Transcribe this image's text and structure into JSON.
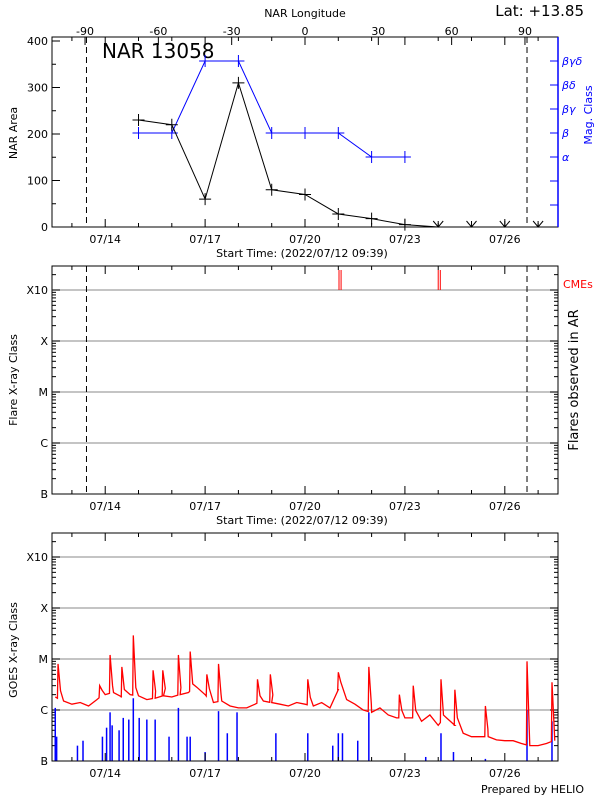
{
  "colors": {
    "area": "#000000",
    "mag": "#0000ff",
    "cme": "#ff0000",
    "goes_long": "#ff0000",
    "goes_short": "#0000ff",
    "grid": "#a0a0a0"
  },
  "start_time_label": "Start Time: (2022/07/12 09:39)",
  "footer": "Prepared by HELIO",
  "chart_data": [
    {
      "type": "line",
      "title": "NAR 13058",
      "lat_label": "Lat: +13.85",
      "xlabel": "Start Time: (2022/07/12 09:39)",
      "x_range": [
        "07/12 09:39",
        "07/27 14:30"
      ],
      "x_ticks": [
        "07/14",
        "07/17",
        "07/20",
        "07/23",
        "07/26"
      ],
      "top_axis": {
        "label": "NAR Longitude",
        "ticks": [
          "-90",
          "-60",
          "-30",
          "0",
          "30",
          "60",
          "90"
        ]
      },
      "ylabel": "NAR Area",
      "ylim": [
        0,
        400
      ],
      "y_ticks": [
        "0",
        "100",
        "200",
        "300",
        "400"
      ],
      "limb_markers": [
        "07/13 10:30",
        "07/26 16:00"
      ],
      "y2label": "Mag. Class",
      "y2_ticks": [
        "βγδ",
        "βδ",
        "βγ",
        "β",
        "α"
      ],
      "series": [
        {
          "key": "area",
          "points": [
            [
              "07/15 00:00",
              230
            ],
            [
              "07/16 00:00",
              220
            ],
            [
              "07/17 00:00",
              60
            ],
            [
              "07/18 00:00",
              310
            ],
            [
              "07/19 00:00",
              80
            ],
            [
              "07/20 00:00",
              70
            ],
            [
              "07/21 00:00",
              28
            ],
            [
              "07/22 00:00",
              18
            ],
            [
              "07/23 00:00",
              5
            ],
            [
              "07/24 00:00",
              0
            ],
            [
              "07/25 00:00",
              0
            ],
            [
              "07/26 00:00",
              0
            ],
            [
              "07/27 00:00",
              0
            ]
          ]
        },
        {
          "key": "mag_class",
          "points": [
            [
              "07/15 00:00",
              "β"
            ],
            [
              "07/16 00:00",
              "β"
            ],
            [
              "07/17 00:00",
              "βγδ"
            ],
            [
              "07/18 00:00",
              "βγδ"
            ],
            [
              "07/19 00:00",
              "β"
            ],
            [
              "07/20 00:00",
              "β"
            ],
            [
              "07/21 00:00",
              "β"
            ],
            [
              "07/22 00:00",
              "α"
            ],
            [
              "07/23 00:00",
              "α"
            ]
          ]
        }
      ]
    },
    {
      "type": "scatter",
      "ylabel": "Flare X-ray Class",
      "y2label": "Flares observed in AR",
      "xlabel": "Start Time: (2022/07/12 09:39)",
      "x_ticks": [
        "07/14",
        "07/17",
        "07/20",
        "07/23",
        "07/26"
      ],
      "y_ticks": [
        "B",
        "C",
        "M",
        "X",
        "X10"
      ],
      "grid": true,
      "limb_markers": [
        "07/13 10:30",
        "07/26 16:00"
      ],
      "cme_label": "CMEs",
      "cmes": [
        "07/21 00:30",
        "07/21 02:00",
        "07/24 00:00",
        "07/24 01:30"
      ],
      "flares": []
    },
    {
      "type": "line",
      "ylabel": "GOES X-ray Class",
      "x_ticks": [
        "07/14",
        "07/17",
        "07/20",
        "07/23",
        "07/26"
      ],
      "y_ticks": [
        "B",
        "C",
        "M",
        "X",
        "X10"
      ],
      "yscale": "log",
      "grid": true,
      "long_channel": {
        "start": "07/12 12:00",
        "step_hours": 6,
        "baseline": [
          1.8e-06,
          1.5e-06,
          1.3e-06,
          1.4e-06,
          1.2e-06,
          1.6e-06,
          2e-06,
          2.2e-06,
          1.8e-06,
          2e-06,
          1.9e-06,
          1.6e-06,
          1.7e-06,
          1.9e-06,
          1.8e-06,
          2e-06,
          2.2e-06,
          2.8e-06,
          2e-06,
          1.4e-06,
          1.5e-06,
          1.2e-06,
          1.1e-06,
          1.1e-06,
          1.3e-06,
          1.5e-06,
          1.4e-06,
          1.3e-06,
          1.2e-06,
          1.4e-06,
          1.3e-06,
          1.2e-06,
          1.4e-06,
          1.1e-06,
          2.5e-06,
          1.6e-06,
          1.3e-06,
          1e-06,
          9e-07,
          1.1e-06,
          8e-07,
          7e-07,
          7e-07,
          7e-07,
          6e-07,
          8e-07,
          5e-07,
          7e-07,
          5e-07,
          3.5e-07,
          3e-07,
          3e-07,
          3e-07,
          2.6e-07,
          2.5e-07,
          2.5e-07,
          2.2e-07,
          2e-07,
          2e-07,
          2.2e-07,
          2.5e-07
        ],
        "peaks": [
          [
            "07/12 14:00",
            8e-06
          ],
          [
            "07/13 20:00",
            3e-06
          ],
          [
            "07/14 03:30",
            1.2e-05
          ],
          [
            "07/14 12:00",
            7e-06
          ],
          [
            "07/14 20:15",
            2.9e-05
          ],
          [
            "07/15 10:30",
            6e-06
          ],
          [
            "07/15 17:30",
            6e-06
          ],
          [
            "07/16 04:45",
            1.2e-05
          ],
          [
            "07/16 13:15",
            1.4e-05
          ],
          [
            "07/17 01:15",
            5e-06
          ],
          [
            "07/17 09:40",
            8e-06
          ],
          [
            "07/18 13:45",
            4e-06
          ],
          [
            "07/18 23:00",
            5e-06
          ],
          [
            "07/20 02:00",
            4e-06
          ],
          [
            "07/21 00:00",
            5.5e-06
          ],
          [
            "07/21 22:00",
            7e-06
          ],
          [
            "07/22 20:00",
            2e-06
          ],
          [
            "07/23 06:00",
            3e-06
          ],
          [
            "07/24 02:00",
            4e-06
          ],
          [
            "07/24 12:00",
            2.5e-06
          ],
          [
            "07/25 10:00",
            1.2e-06
          ],
          [
            "07/26 16:00",
            9e-06
          ],
          [
            "07/27 10:00",
            3.5e-06
          ]
        ]
      },
      "short_channel": {
        "spikes": [
          [
            "07/12 12:00",
            1.1e-06
          ],
          [
            "07/12 13:00",
            3e-07
          ],
          [
            "07/13 04:00",
            2e-07
          ],
          [
            "07/13 08:00",
            2.5e-07
          ],
          [
            "07/13 22:00",
            3e-07
          ],
          [
            "07/14 01:00",
            4.5e-07
          ],
          [
            "07/14 03:30",
            9e-07
          ],
          [
            "07/14 05:00",
            5e-07
          ],
          [
            "07/14 10:00",
            4e-07
          ],
          [
            "07/14 13:00",
            7e-07
          ],
          [
            "07/14 17:00",
            6.5e-07
          ],
          [
            "07/14 20:15",
            1.7e-06
          ],
          [
            "07/15 00:30",
            7e-07
          ],
          [
            "07/15 06:00",
            6.5e-07
          ],
          [
            "07/15 12:00",
            6.5e-07
          ],
          [
            "07/15 22:00",
            3e-07
          ],
          [
            "07/16 04:45",
            1.1e-06
          ],
          [
            "07/16 11:00",
            3e-07
          ],
          [
            "07/16 13:15",
            3e-07
          ],
          [
            "07/17 00:00",
            1.5e-07
          ],
          [
            "07/17 09:40",
            9.5e-07
          ],
          [
            "07/17 16:00",
            3.5e-07
          ],
          [
            "07/17 23:00",
            9e-07
          ],
          [
            "07/19 03:00",
            3.5e-07
          ],
          [
            "07/20 02:00",
            3.5e-07
          ],
          [
            "07/20 20:00",
            2e-07
          ],
          [
            "07/21 00:00",
            3.5e-07
          ],
          [
            "07/21 03:00",
            3.5e-07
          ],
          [
            "07/21 14:00",
            2.5e-07
          ],
          [
            "07/21 22:00",
            9e-07
          ],
          [
            "07/23 15:00",
            1.2e-07
          ],
          [
            "07/24 02:00",
            3.5e-07
          ],
          [
            "07/24 11:00",
            1.5e-07
          ],
          [
            "07/25 10:00",
            1.1e-07
          ],
          [
            "07/26 16:00",
            1e-06
          ],
          [
            "07/27 10:00",
            6e-07
          ]
        ]
      }
    }
  ]
}
